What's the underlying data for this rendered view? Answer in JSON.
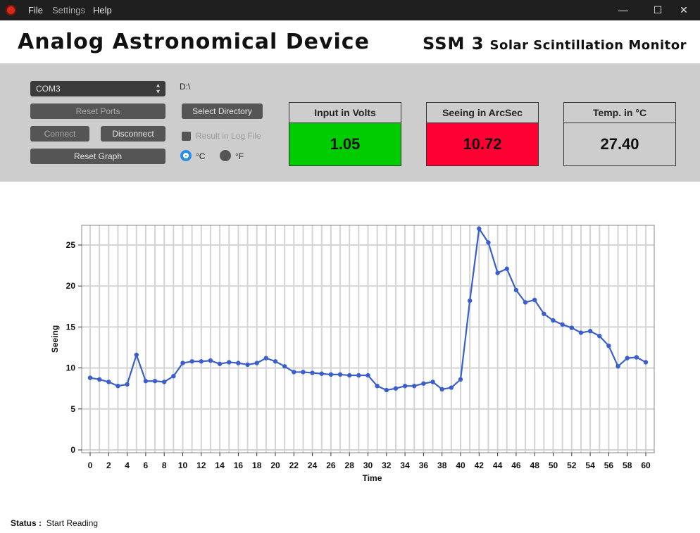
{
  "window": {
    "menu": [
      "File",
      "Settings",
      "Help"
    ],
    "controls": [
      "—",
      "☐",
      "✕"
    ]
  },
  "header": {
    "title": "Analog Astronomical Device",
    "model": "SSM 3",
    "subtitle": "Solar Scintillation Monitor"
  },
  "controls": {
    "port_select": "COM3",
    "directory": "D:\\",
    "reset_ports": "Reset Ports",
    "select_directory": "Select Directory",
    "connect": "Connect",
    "disconnect": "Disconnect",
    "log_checkbox": "Result in Log File",
    "reset_graph": "Reset Graph",
    "unit_c": "°C",
    "unit_f": "°F",
    "selected_unit": "C"
  },
  "meters": [
    {
      "label": "Input in Volts",
      "value": "1.05",
      "color": "#00cc00"
    },
    {
      "label": "Seeing in ArcSec",
      "value": "10.72",
      "color": "#ff0033"
    },
    {
      "label": "Temp. in °C",
      "value": "27.40",
      "color": "#cdcdcd"
    }
  ],
  "status": {
    "label": "Status :",
    "text": "Start Reading"
  },
  "chart_data": {
    "type": "line",
    "xlabel": "Time",
    "ylabel": "Seeing",
    "xlim": [
      0,
      60
    ],
    "ylim": [
      0,
      27
    ],
    "xticks": [
      0,
      2,
      4,
      6,
      8,
      10,
      12,
      14,
      16,
      18,
      20,
      22,
      24,
      26,
      28,
      30,
      32,
      34,
      36,
      38,
      40,
      42,
      44,
      46,
      48,
      50,
      52,
      54,
      56,
      58,
      60
    ],
    "yticks": [
      0,
      5,
      10,
      15,
      20,
      25
    ],
    "grid": true,
    "series": [
      {
        "color": "#3a5fcd",
        "x": [
          0,
          1,
          2,
          3,
          4,
          5,
          6,
          7,
          8,
          9,
          10,
          11,
          12,
          13,
          14,
          15,
          16,
          17,
          18,
          19,
          20,
          21,
          22,
          23,
          24,
          25,
          26,
          27,
          28,
          29,
          30,
          31,
          32,
          33,
          34,
          35,
          36,
          37,
          38,
          39,
          40,
          41,
          42,
          43,
          44,
          45,
          46,
          47,
          48,
          49,
          50,
          51,
          52,
          53,
          54,
          55,
          56,
          57,
          58,
          59,
          60
        ],
        "values": [
          8.8,
          8.6,
          8.3,
          7.8,
          8.0,
          11.6,
          8.4,
          8.4,
          8.3,
          9.0,
          10.6,
          10.8,
          10.8,
          10.9,
          10.5,
          10.7,
          10.6,
          10.4,
          10.6,
          11.2,
          10.8,
          10.2,
          9.5,
          9.5,
          9.4,
          9.3,
          9.2,
          9.2,
          9.1,
          9.1,
          9.1,
          7.8,
          7.3,
          7.5,
          7.8,
          7.8,
          8.1,
          8.3,
          7.4,
          7.6,
          8.6,
          18.2,
          27.0,
          25.3,
          21.6,
          22.1,
          19.5,
          18.0,
          18.3,
          16.6,
          15.8,
          15.3,
          14.9,
          14.3,
          14.5,
          13.9,
          12.7,
          10.2,
          11.2,
          11.3,
          10.7
        ]
      }
    ]
  }
}
